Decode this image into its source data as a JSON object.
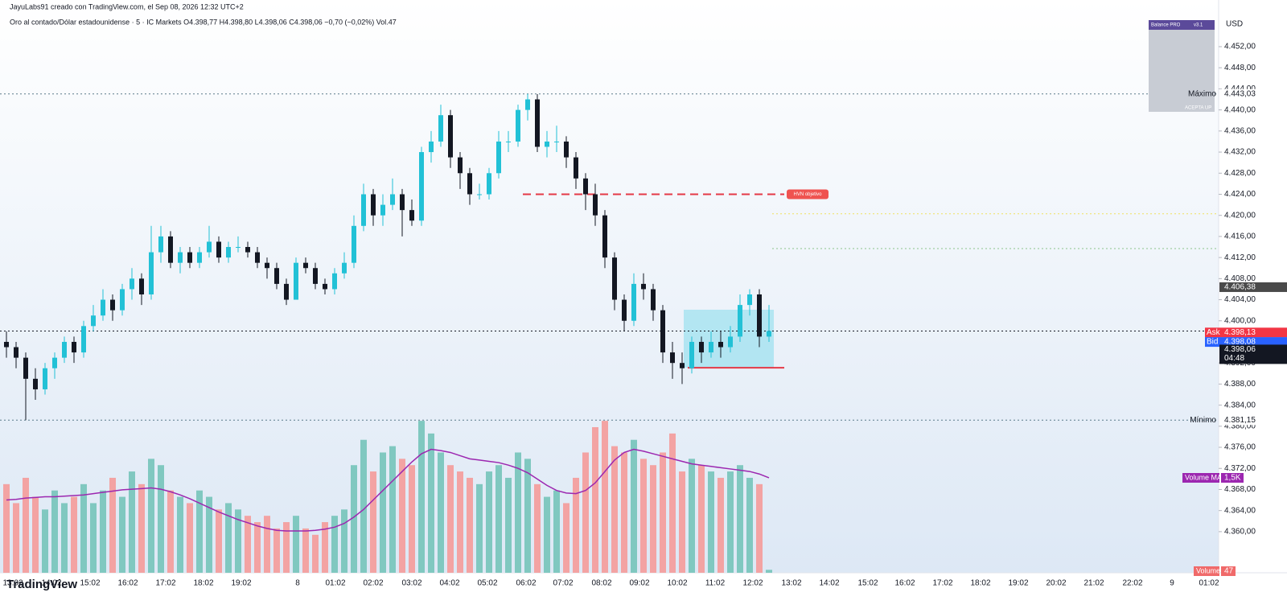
{
  "header": {
    "credit": "JayuLabs91 creado con TradingView.com, el Sep 08, 2026 12:32 UTC+2",
    "legend": "Oro al contado/Dólar estadounidense · 5 · IC Markets   O4.398,77   H4.398,80   L4.398,06   C4.398,06   −0,70 (−0,02%)   Vol.47"
  },
  "footer": {
    "logo": "TradingView"
  },
  "chart_data": {
    "type": "candlestick",
    "currency": "USD",
    "up_color": "#22c1d6",
    "down_color": "#131722",
    "volume_up_color": "#80c8c0",
    "volume_down_color": "#f3a3a3",
    "ma_color": "#9c27b0",
    "ylim": [
      4352.2,
      4460.85
    ],
    "yticks": [
      {
        "value": 4452,
        "label": "4.452,00"
      },
      {
        "value": 4448,
        "label": "4.448,00"
      },
      {
        "value": 4444,
        "label": "4.444,00"
      },
      {
        "value": 4440,
        "label": "4.440,00"
      },
      {
        "value": 4436,
        "label": "4.436,00"
      },
      {
        "value": 4432,
        "label": "4.432,00"
      },
      {
        "value": 4428,
        "label": "4.428,00"
      },
      {
        "value": 4424,
        "label": "4.424,00"
      },
      {
        "value": 4420,
        "label": "4.420,00"
      },
      {
        "value": 4416,
        "label": "4.416,00"
      },
      {
        "value": 4412,
        "label": "4.412,00"
      },
      {
        "value": 4408,
        "label": "4.408,00"
      },
      {
        "value": 4404,
        "label": "4.404,00"
      },
      {
        "value": 4400,
        "label": "4.400,00"
      },
      {
        "value": 4396,
        "label": "4.396,00"
      },
      {
        "value": 4392,
        "label": "4.392,00"
      },
      {
        "value": 4388,
        "label": "4.388,00"
      },
      {
        "value": 4384,
        "label": "4.384,00"
      },
      {
        "value": 4380,
        "label": "4.380,00"
      },
      {
        "value": 4376,
        "label": "4.376,00"
      },
      {
        "value": 4372,
        "label": "4.372,00"
      },
      {
        "value": 4368,
        "label": "4.368,00"
      },
      {
        "value": 4364,
        "label": "4.364,00"
      },
      {
        "value": 4360,
        "label": "4.360,00"
      }
    ],
    "time_labels": [
      "13:02",
      "14:02",
      "15:02",
      "16:02",
      "17:02",
      "18:02",
      "19:02",
      "8",
      "01:02",
      "02:02",
      "03:02",
      "04:02",
      "05:02",
      "06:02",
      "07:02",
      "08:02",
      "09:02",
      "10:02",
      "11:02",
      "12:02",
      "13:02",
      "14:02",
      "15:02",
      "16:02",
      "17:02",
      "18:02",
      "19:02",
      "20:02",
      "21:02",
      "22:02",
      "9",
      "01:02"
    ],
    "ohlc": [
      [
        4396,
        4398,
        4393,
        4395
      ],
      [
        4395,
        4396,
        4391,
        4393
      ],
      [
        4393,
        4394,
        4381.15,
        4389
      ],
      [
        4389,
        4391,
        4385,
        4387
      ],
      [
        4387,
        4392,
        4386,
        4391
      ],
      [
        4391,
        4394,
        4389,
        4393
      ],
      [
        4393,
        4397,
        4392,
        4396
      ],
      [
        4396,
        4397,
        4392,
        4394
      ],
      [
        4394,
        4400,
        4393,
        4399
      ],
      [
        4399,
        4403,
        4398,
        4401
      ],
      [
        4401,
        4406,
        4400,
        4404
      ],
      [
        4404,
        4405,
        4400,
        4402
      ],
      [
        4402,
        4407,
        4401,
        4406
      ],
      [
        4406,
        4410,
        4404,
        4408
      ],
      [
        4408,
        4409,
        4403,
        4405
      ],
      [
        4405,
        4418,
        4404,
        4413
      ],
      [
        4413,
        4418,
        4411,
        4416
      ],
      [
        4416,
        4417,
        4410,
        4411
      ],
      [
        4411,
        4414,
        4409,
        4413
      ],
      [
        4413,
        4414,
        4410,
        4411
      ],
      [
        4411,
        4414,
        4410,
        4413
      ],
      [
        4413,
        4418,
        4412,
        4415
      ],
      [
        4415,
        4416,
        4411,
        4412
      ],
      [
        4412,
        4415,
        4411,
        4414
      ],
      [
        4414,
        4416,
        4413,
        4414
      ],
      [
        4414,
        4415,
        4412,
        4413
      ],
      [
        4413,
        4414,
        4410,
        4411
      ],
      [
        4411,
        4412,
        4408,
        4410
      ],
      [
        4410,
        4411,
        4406,
        4407
      ],
      [
        4407,
        4408,
        4403,
        4404
      ],
      [
        4404,
        4412,
        4404,
        4411
      ],
      [
        4411,
        4412,
        4409,
        4410
      ],
      [
        4410,
        4411,
        4406,
        4407
      ],
      [
        4407,
        4408,
        4405,
        4406
      ],
      [
        4406,
        4410,
        4405,
        4409
      ],
      [
        4409,
        4413,
        4408,
        4411
      ],
      [
        4411,
        4420,
        4410,
        4418
      ],
      [
        4418,
        4426,
        4417,
        4424
      ],
      [
        4424,
        4425,
        4418,
        4420
      ],
      [
        4420,
        4424,
        4418,
        4422
      ],
      [
        4422,
        4427,
        4421,
        4424
      ],
      [
        4424,
        4425,
        4416,
        4421
      ],
      [
        4421,
        4423,
        4418,
        4419
      ],
      [
        4419,
        4433,
        4418,
        4432
      ],
      [
        4432,
        4436,
        4430,
        4434
      ],
      [
        4434,
        4441,
        4433,
        4439
      ],
      [
        4439,
        4440,
        4429,
        4431
      ],
      [
        4431,
        4432,
        4425,
        4428
      ],
      [
        4428,
        4429,
        4422,
        4424
      ],
      [
        4424,
        4426,
        4423,
        4424
      ],
      [
        4424,
        4429,
        4423,
        4428
      ],
      [
        4428,
        4436,
        4427,
        4434
      ],
      [
        4434,
        4436,
        4432,
        4434
      ],
      [
        4434,
        4441,
        4433,
        4440
      ],
      [
        4440,
        4443.03,
        4438,
        4442
      ],
      [
        4442,
        4443,
        4432,
        4433
      ],
      [
        4433,
        4436,
        4431,
        4434
      ],
      [
        4434,
        4437,
        4432,
        4434
      ],
      [
        4434,
        4435,
        4429,
        4431
      ],
      [
        4431,
        4432,
        4425,
        4427
      ],
      [
        4427,
        4428,
        4421,
        4424
      ],
      [
        4424,
        4426,
        4418,
        4420
      ],
      [
        4420,
        4421,
        4410,
        4412
      ],
      [
        4412,
        4413,
        4402,
        4404
      ],
      [
        4404,
        4405,
        4398,
        4400
      ],
      [
        4400,
        4409,
        4399,
        4407
      ],
      [
        4407,
        4409,
        4404,
        4406
      ],
      [
        4406,
        4407,
        4400,
        4402
      ],
      [
        4402,
        4403,
        4392,
        4394
      ],
      [
        4394,
        4396,
        4389,
        4392
      ],
      [
        4392,
        4394,
        4388,
        4391
      ],
      [
        4391,
        4397,
        4390,
        4396
      ],
      [
        4396,
        4397,
        4392,
        4394
      ],
      [
        4394,
        4398,
        4393,
        4396
      ],
      [
        4396,
        4398,
        4393,
        4395
      ],
      [
        4395,
        4399,
        4394,
        4397
      ],
      [
        4397,
        4405,
        4396,
        4403
      ],
      [
        4403,
        4406,
        4401,
        4405
      ],
      [
        4405,
        4406,
        4395,
        4397
      ],
      [
        4397,
        4403,
        4396,
        4398.06
      ]
    ],
    "volume": [
      1400,
      1100,
      1500,
      1200,
      1000,
      1300,
      1100,
      1200,
      1400,
      1100,
      1300,
      1500,
      1200,
      1600,
      1400,
      1800,
      1700,
      1300,
      1200,
      1100,
      1300,
      1200,
      1000,
      1100,
      1000,
      900,
      800,
      900,
      700,
      800,
      900,
      700,
      600,
      800,
      900,
      1000,
      1700,
      2100,
      1600,
      1900,
      2000,
      1800,
      1700,
      2400,
      2200,
      1900,
      1700,
      1600,
      1500,
      1400,
      1600,
      1700,
      1500,
      1900,
      1800,
      1400,
      1200,
      1300,
      1100,
      1500,
      1900,
      2300,
      2400,
      2000,
      1900,
      2100,
      1800,
      1700,
      1900,
      2200,
      1600,
      1800,
      1700,
      1600,
      1500,
      1600,
      1700,
      1500,
      1400,
      47
    ],
    "volume_ma": [
      1150,
      1160,
      1180,
      1190,
      1200,
      1200,
      1210,
      1220,
      1230,
      1250,
      1270,
      1290,
      1310,
      1320,
      1330,
      1340,
      1320,
      1280,
      1230,
      1170,
      1100,
      1030,
      960,
      900,
      840,
      790,
      740,
      700,
      670,
      660,
      660,
      660,
      670,
      690,
      720,
      780,
      880,
      1000,
      1150,
      1300,
      1450,
      1600,
      1750,
      1880,
      1950,
      1930,
      1900,
      1850,
      1800,
      1780,
      1760,
      1740,
      1700,
      1650,
      1580,
      1480,
      1380,
      1300,
      1260,
      1250,
      1300,
      1420,
      1600,
      1780,
      1900,
      1950,
      1920,
      1880,
      1840,
      1800,
      1760,
      1720,
      1700,
      1680,
      1660,
      1640,
      1620,
      1600,
      1560,
      1500
    ],
    "volume_legend": {
      "label": "Volume",
      "value": 47
    },
    "volume_ma_legend": {
      "label": "Volume MA",
      "value": {
        "value": 1500,
        "label": "1,5K"
      }
    },
    "maximum": {
      "label": "Máximo",
      "price": {
        "value": 4443.03,
        "label": "4.443,03"
      }
    },
    "minimum": {
      "label": "Mínimo",
      "price": {
        "value": 4381.15,
        "label": "4.381,15"
      }
    },
    "ask": {
      "label": "Ask",
      "price": {
        "value": 4398.13,
        "label": "4.398,13"
      }
    },
    "bid": {
      "label": "Bid",
      "price": {
        "value": 4398.08,
        "label": "4.398,08"
      }
    },
    "last_price": {
      "value": 4398.06,
      "label": "4.398,06"
    },
    "countdown": "04:48",
    "session_high": {
      "value": 4406.38,
      "label": "4.406,38"
    },
    "hvn": {
      "label": "HVN objetivo",
      "value": 4424
    },
    "levels": [
      {
        "value": 4420.3,
        "color": "#f0e060"
      },
      {
        "value": 4413.7,
        "color": "#8cc48c"
      },
      {
        "value": 4391.1,
        "color": "#e53946"
      }
    ]
  },
  "panel": {
    "title": "Balance PRO",
    "version": "v3.1",
    "status": "ACEPTA UP"
  }
}
